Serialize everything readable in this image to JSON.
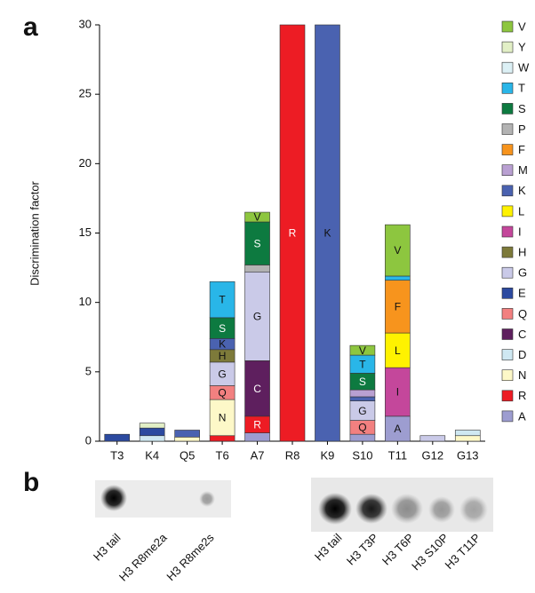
{
  "chart_data": {
    "type": "bar",
    "stacked": true,
    "y_label": "Discrimination factor",
    "categories": [
      "T3",
      "K4",
      "Q5",
      "T6",
      "A7",
      "R8",
      "K9",
      "S10",
      "T11",
      "G12",
      "G13"
    ],
    "ylim": [
      0,
      30
    ],
    "yticks": [
      0,
      5,
      10,
      15,
      20,
      25,
      30
    ],
    "series": [
      {
        "name": "A",
        "color": "#9d9dd0",
        "values": [
          null,
          null,
          null,
          null,
          0.6,
          null,
          null,
          0.5,
          1.8,
          null,
          null
        ]
      },
      {
        "name": "R",
        "color": "#ed1c24",
        "values": [
          null,
          null,
          null,
          0.4,
          1.2,
          30,
          null,
          null,
          null,
          null,
          null
        ]
      },
      {
        "name": "N",
        "color": "#fdf8c8",
        "values": [
          null,
          null,
          0.3,
          2.6,
          null,
          null,
          null,
          null,
          null,
          null,
          0.4
        ]
      },
      {
        "name": "D",
        "color": "#cfe8f2",
        "values": [
          null,
          0.4,
          null,
          null,
          null,
          null,
          null,
          null,
          null,
          null,
          0.4
        ]
      },
      {
        "name": "C",
        "color": "#5e1f5e",
        "values": [
          null,
          null,
          null,
          null,
          4.0,
          null,
          null,
          null,
          null,
          null,
          null
        ]
      },
      {
        "name": "Q",
        "color": "#f28080",
        "values": [
          null,
          null,
          null,
          1.0,
          null,
          null,
          null,
          1.0,
          null,
          null,
          null
        ]
      },
      {
        "name": "E",
        "color": "#2c4aa0",
        "values": [
          0.5,
          0.55,
          null,
          null,
          null,
          null,
          null,
          null,
          null,
          null,
          null
        ]
      },
      {
        "name": "G",
        "color": "#cacae8",
        "values": [
          null,
          null,
          null,
          1.7,
          6.4,
          null,
          null,
          1.4,
          null,
          0.4,
          null
        ]
      },
      {
        "name": "H",
        "color": "#7d7a3a",
        "values": [
          null,
          null,
          null,
          0.9,
          null,
          null,
          null,
          null,
          null,
          null,
          null
        ]
      },
      {
        "name": "I",
        "color": "#c4479b",
        "values": [
          null,
          null,
          null,
          null,
          null,
          null,
          null,
          null,
          3.5,
          null,
          null
        ]
      },
      {
        "name": "L",
        "color": "#fff200",
        "values": [
          null,
          null,
          null,
          null,
          null,
          null,
          null,
          null,
          2.5,
          null,
          null
        ]
      },
      {
        "name": "K",
        "color": "#4a62b0",
        "values": [
          null,
          null,
          0.5,
          0.8,
          null,
          null,
          30,
          0.3,
          null,
          null,
          null
        ]
      },
      {
        "name": "M",
        "color": "#b9a0d2",
        "values": [
          null,
          null,
          null,
          null,
          null,
          null,
          null,
          0.5,
          null,
          null,
          null
        ]
      },
      {
        "name": "F",
        "color": "#f7941d",
        "values": [
          null,
          null,
          null,
          null,
          null,
          null,
          null,
          null,
          3.8,
          null,
          null
        ]
      },
      {
        "name": "P",
        "color": "#b3b3b3",
        "values": [
          null,
          null,
          null,
          null,
          0.5,
          null,
          null,
          null,
          null,
          null,
          null
        ]
      },
      {
        "name": "S",
        "color": "#0d7a40",
        "values": [
          null,
          null,
          null,
          1.5,
          3.1,
          null,
          null,
          1.2,
          null,
          null,
          null
        ]
      },
      {
        "name": "T",
        "color": "#29b6e8",
        "values": [
          null,
          null,
          null,
          2.6,
          null,
          null,
          null,
          1.3,
          0.3,
          null,
          null
        ]
      },
      {
        "name": "W",
        "color": "#dcf0f5",
        "values": [
          null,
          null,
          null,
          null,
          null,
          null,
          null,
          null,
          null,
          null,
          null
        ]
      },
      {
        "name": "Y",
        "color": "#e2efc6",
        "values": [
          null,
          0.35,
          null,
          null,
          null,
          null,
          null,
          null,
          null,
          null,
          null
        ]
      },
      {
        "name": "V",
        "color": "#8dc63f",
        "values": [
          null,
          null,
          null,
          null,
          0.7,
          null,
          null,
          0.7,
          3.7,
          null,
          null
        ]
      }
    ]
  },
  "panels": [
    "a",
    "b"
  ],
  "blots": [
    {
      "labels": [
        "H3 tail",
        "H3 R8me2a",
        "H3 R8me2s"
      ]
    },
    {
      "labels": [
        "H3 tail",
        "H3 T3P",
        "H3 T6P",
        "H3 S10P",
        "H3 T11P"
      ]
    }
  ]
}
